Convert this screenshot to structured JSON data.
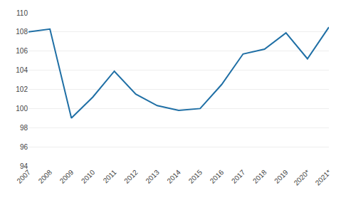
{
  "chart_data": {
    "type": "line",
    "categories": [
      "2007",
      "2008",
      "2009",
      "2010",
      "2011",
      "2012",
      "2013",
      "2014",
      "2015",
      "2016",
      "2017",
      "2018",
      "2019",
      "2020*",
      "2021*"
    ],
    "values": [
      108.0,
      108.3,
      99.0,
      101.2,
      103.9,
      101.5,
      100.3,
      99.8,
      100.0,
      102.5,
      105.7,
      106.2,
      107.9,
      105.2,
      108.5
    ],
    "color": "#1f6fa5",
    "ylim": [
      94,
      110
    ],
    "yticks": [
      94,
      96,
      98,
      100,
      102,
      104,
      106,
      108,
      110
    ],
    "grid": true
  }
}
